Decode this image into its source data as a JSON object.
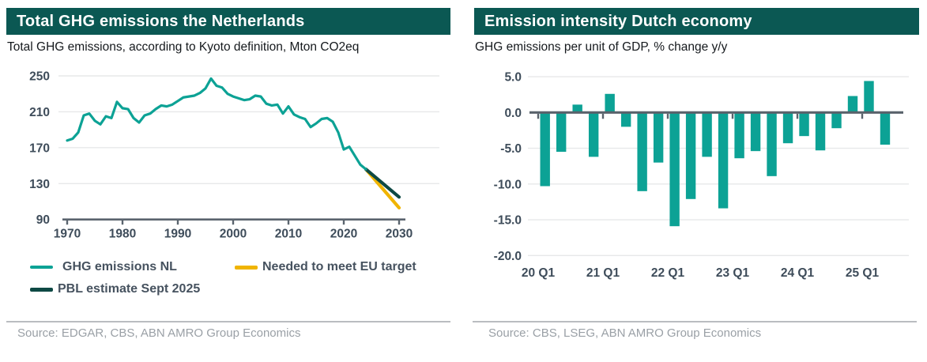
{
  "left_panel": {
    "title": "Total GHG emissions the Netherlands",
    "subtitle": "Total GHG emissions, according to Kyoto definition, Mton CO2eq",
    "source": "Source: EDGAR, CBS, ABN AMRO Group Economics"
  },
  "right_panel": {
    "title": "Emission intensity Dutch economy",
    "subtitle": "GHG emissions per unit of GDP, % change y/y",
    "source": "Source: CBS, LSEG, ABN AMRO Group Economics"
  },
  "colors": {
    "header_bg": "#0b5853",
    "teal": "#0ca295",
    "dark_teal": "#0e4944",
    "yellow": "#f0b400",
    "axis": "#5a646e",
    "zero_line": "#59626b",
    "grid": "#e7e8e9",
    "tick_label": "#3e4c5a",
    "legend_text": "#46525f",
    "source_text": "#9aa0a6"
  },
  "chart_data": [
    {
      "type": "line",
      "title": "Total GHG emissions the Netherlands",
      "subtitle": "Total GHG emissions, according to Kyoto definition, Mton CO2eq",
      "ylim": [
        90,
        250
      ],
      "xlim": [
        1970,
        2030
      ],
      "yticks": [
        250,
        210,
        170,
        130,
        90
      ],
      "ytick_labels": [
        "250",
        "210",
        "170",
        "130",
        "90"
      ],
      "xticks": [
        1970,
        1980,
        1990,
        2000,
        2010,
        2020,
        2030
      ],
      "xtick_labels": [
        "1970",
        "1980",
        "1990",
        "2000",
        "2010",
        "2020",
        "2030"
      ],
      "grid": true,
      "legend_position": "bottom",
      "series": [
        {
          "name": "GHG emissions NL",
          "color": "#0ca295",
          "x": [
            1970,
            1971,
            1972,
            1973,
            1974,
            1975,
            1976,
            1977,
            1978,
            1979,
            1980,
            1981,
            1982,
            1983,
            1984,
            1985,
            1986,
            1987,
            1988,
            1989,
            1990,
            1991,
            1992,
            1993,
            1994,
            1995,
            1996,
            1997,
            1998,
            1999,
            2000,
            2001,
            2002,
            2003,
            2004,
            2005,
            2006,
            2007,
            2008,
            2009,
            2010,
            2011,
            2012,
            2013,
            2014,
            2015,
            2016,
            2017,
            2018,
            2019,
            2020,
            2021,
            2022,
            2023,
            2024
          ],
          "y": [
            178,
            180,
            187,
            206,
            208,
            200,
            196,
            205,
            203,
            221,
            214,
            213,
            203,
            198,
            206,
            208,
            213,
            217,
            216,
            218,
            222,
            226,
            227,
            228,
            231,
            236,
            247,
            239,
            237,
            230,
            227,
            225,
            223,
            224,
            228,
            227,
            219,
            217,
            218,
            208,
            216,
            207,
            204,
            202,
            193,
            197,
            202,
            203,
            199,
            187,
            168,
            171,
            161,
            151,
            146
          ]
        },
        {
          "name": "Needed to meet EU target",
          "color": "#f0b400",
          "x": [
            2024,
            2030
          ],
          "y": [
            146,
            103
          ]
        },
        {
          "name": "PBL estimate Sept 2025",
          "color": "#0e4944",
          "x": [
            2024,
            2030
          ],
          "y": [
            146,
            115
          ]
        }
      ]
    },
    {
      "type": "bar",
      "title": "Emission intensity Dutch economy",
      "subtitle": "GHG emissions per unit of GDP, % change y/y",
      "categories": [
        "20 Q1",
        "20 Q2",
        "20 Q3",
        "20 Q4",
        "21 Q1",
        "21 Q2",
        "21 Q3",
        "21 Q4",
        "22 Q1",
        "22 Q2",
        "22 Q3",
        "22 Q4",
        "23 Q1",
        "23 Q2",
        "23 Q3",
        "23 Q4",
        "24 Q1",
        "24 Q2",
        "24 Q3",
        "24 Q4",
        "25 Q1",
        "25 Q2"
      ],
      "values": [
        -10.3,
        -5.5,
        1.1,
        -6.2,
        2.6,
        -2.0,
        -11.0,
        -7.0,
        -15.9,
        -12.1,
        -6.2,
        -13.4,
        -6.4,
        -5.4,
        -8.9,
        -4.3,
        -3.3,
        -5.3,
        -2.2,
        2.3,
        4.4,
        -4.5
      ],
      "bar_color": "#0ca295",
      "ylim": [
        -20,
        6.5
      ],
      "yticks": [
        5,
        0,
        -5,
        -10,
        -15,
        -20
      ],
      "ytick_labels": [
        "5.0",
        "0.0",
        "-5.0",
        "-10.0",
        "-15.0",
        "-20.0"
      ],
      "xtick_labels": [
        "20 Q1",
        "21 Q1",
        "22 Q1",
        "23 Q1",
        "24 Q1",
        "25 Q1"
      ],
      "grid": true
    }
  ]
}
